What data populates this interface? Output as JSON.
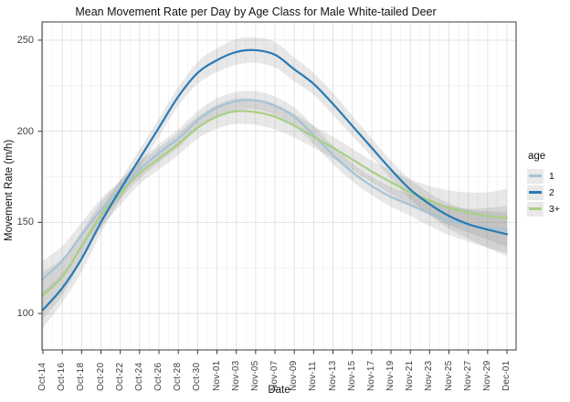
{
  "title": "Mean Movement Rate per Day by Age Class for Male White-tailed Deer",
  "axes": {
    "x_label": "Date",
    "y_label": "Movement Rate (m/h)"
  },
  "legend": {
    "title": "age",
    "entries": [
      {
        "label": "1",
        "color": "#a5c4d6"
      },
      {
        "label": "2",
        "color": "#2a7ab5"
      },
      {
        "label": "3+",
        "color": "#a9cf84"
      }
    ]
  },
  "style_colors": {
    "major_grid": "#e3e3e3",
    "minor_grid": "#f1f1f1",
    "panel_border": "#4a4a4a",
    "tick_mark": "#333333",
    "ribbon": "rgba(110,110,110,0.16)"
  },
  "chart_data": {
    "type": "line",
    "title": "Mean Movement Rate per Day by Age Class for Male White-tailed Deer",
    "xlabel": "Date",
    "ylabel": "Movement Rate (m/h)",
    "legend_title": "age",
    "legend_position": "right",
    "grid": true,
    "ylim": [
      80,
      260
    ],
    "y_major_ticks": [
      100,
      150,
      200,
      250
    ],
    "y_minor_ticks": [
      125,
      175,
      225
    ],
    "x": [
      "Oct-14",
      "Oct-16",
      "Oct-18",
      "Oct-20",
      "Oct-22",
      "Oct-24",
      "Oct-26",
      "Oct-28",
      "Oct-30",
      "Nov-01",
      "Nov-03",
      "Nov-05",
      "Nov-07",
      "Nov-09",
      "Nov-11",
      "Nov-13",
      "Nov-15",
      "Nov-17",
      "Nov-19",
      "Nov-21",
      "Nov-23",
      "Nov-25",
      "Nov-27",
      "Nov-29",
      "Dec-01"
    ],
    "series": [
      {
        "name": "1",
        "color": "#a5c4d6",
        "values": [
          119,
          129,
          143,
          157,
          168,
          179,
          188,
          196,
          206,
          213,
          216.5,
          217,
          214,
          208,
          198,
          187,
          177.5,
          170,
          164,
          159.5,
          155,
          151,
          148.5,
          147,
          146
        ],
        "ci_halfwidth": [
          10,
          8,
          7,
          6,
          5,
          5,
          5,
          5,
          5,
          5,
          5,
          5,
          5,
          5,
          5,
          5,
          5,
          5,
          5.5,
          6,
          7,
          8,
          9,
          11,
          13
        ]
      },
      {
        "name": "2",
        "color": "#2a7ab5",
        "values": [
          102,
          114,
          130,
          150,
          168,
          185,
          202,
          219,
          232,
          239,
          243.5,
          244.5,
          242,
          234,
          226,
          215,
          203,
          191,
          179,
          168,
          160,
          153.5,
          149,
          146,
          143.5
        ],
        "ci_halfwidth": [
          10,
          8,
          7,
          6,
          5.5,
          5,
          5,
          5,
          6,
          6.5,
          7,
          7,
          7,
          6.5,
          6,
          6,
          5.5,
          5,
          5,
          5.5,
          6,
          7,
          8,
          10,
          12
        ]
      },
      {
        "name": "3+",
        "color": "#a9cf84",
        "values": [
          110,
          120,
          137,
          154,
          166,
          177,
          185,
          193,
          202,
          208,
          211,
          210.5,
          208,
          203,
          197,
          191,
          184.5,
          178,
          172,
          166.5,
          162,
          158,
          155.5,
          153.5,
          152.5
        ],
        "ci_halfwidth": [
          13,
          10,
          8,
          7,
          6.5,
          6,
          6,
          6,
          6,
          6.5,
          7,
          7,
          7,
          6.5,
          6,
          6,
          6,
          6,
          6.5,
          7,
          8,
          9.5,
          11,
          13,
          16
        ]
      }
    ]
  }
}
